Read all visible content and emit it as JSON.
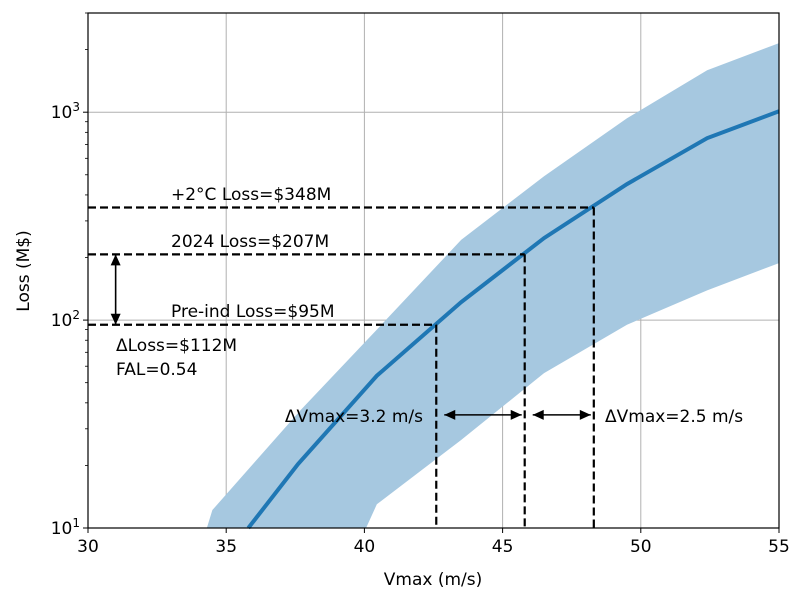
{
  "chart_data": {
    "type": "line",
    "xlabel": "Vmax (m/s)",
    "ylabel": "Loss (M$)",
    "xlim": [
      30,
      55
    ],
    "ylim": [
      10,
      3000
    ],
    "yscale": "log",
    "grid": true,
    "x_ticks": [
      "30",
      "35",
      "40",
      "45",
      "50",
      "55"
    ],
    "y_ticks": [
      {
        "base": "10",
        "exp": "1"
      },
      {
        "base": "10",
        "exp": "2"
      },
      {
        "base": "10",
        "exp": "3"
      }
    ],
    "colors": {
      "line": "#1f77b4",
      "band": "#a6c8e0"
    },
    "series": {
      "x": [
        35.8,
        37.6,
        40.45,
        43.5,
        46.5,
        49.5,
        52.4,
        55
      ],
      "y": [
        10,
        20.3,
        54,
        122,
        248,
        451,
        750,
        1010
      ]
    },
    "band": {
      "upper_x": [
        34.3,
        34.5,
        37.7,
        40.45,
        43.5,
        46.5,
        49.5,
        52.4,
        55
      ],
      "upper_y": [
        10,
        12.2,
        37,
        90,
        243,
        492,
        935,
        1592,
        2150
      ],
      "lower_x": [
        40.06,
        40.45,
        43.5,
        46.5,
        49.5,
        52.4,
        55
      ],
      "lower_y": [
        10,
        13,
        26.5,
        55.6,
        95,
        139,
        188
      ]
    },
    "reference_lines": [
      {
        "label": "+2°C Loss=$348M",
        "loss": 348,
        "vmax": 48.3
      },
      {
        "label": "2024 Loss=$207M",
        "loss": 207,
        "vmax": 45.8
      },
      {
        "label": "Pre-ind Loss=$95M",
        "loss": 95,
        "vmax": 42.6
      }
    ],
    "annotations": {
      "delta_loss": "ΔLoss=$112M",
      "fal": "FAL=0.54",
      "delta_vmax_1": "ΔVmax=3.2 m/s",
      "delta_vmax_2": "ΔVmax=2.5 m/s"
    }
  }
}
